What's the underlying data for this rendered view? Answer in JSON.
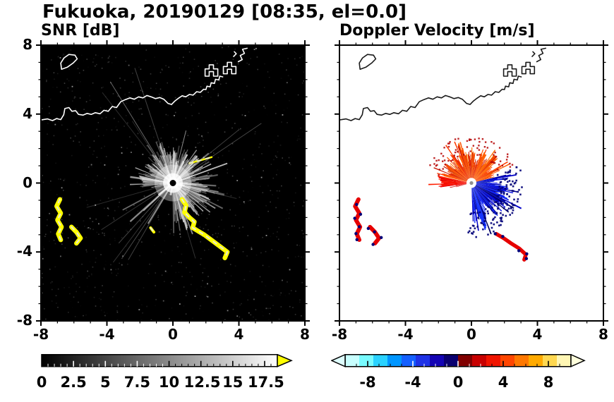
{
  "chart_data": {
    "type": "radar_ppi",
    "title": "Fukuoka, 20190129 [08:35, el=0.0]",
    "site": "Fukuoka",
    "date": "20190129",
    "time": "08:35",
    "elevation": "0.0",
    "axis": {
      "xlim": [
        -8,
        8
      ],
      "ylim": [
        -8,
        8
      ],
      "major_ticks": [
        -8,
        -4,
        0,
        4,
        8
      ],
      "minor_tick_step": 1
    },
    "radar_center": [
      0,
      0
    ],
    "panels": {
      "snr": {
        "title": "SNR [dB]",
        "background": "#000000",
        "coast_color": "#ffffff",
        "colorbar": {
          "min": 0,
          "max": 17.5,
          "axis_max": 18.5,
          "labels": [
            "0",
            "2.5",
            "5",
            "7.5",
            "10",
            "12.5",
            "15",
            "17.5"
          ],
          "style": "grayscale-black-to-white",
          "over_arrow_color": "#ffff00"
        },
        "spokes": {
          "count": 48,
          "min_r": 0.7,
          "max_r": 4.2,
          "long_count": 14
        },
        "clutter_chain_ids": [
          0,
          1,
          2,
          3,
          4
        ],
        "clutter_color": "#ffff00"
      },
      "velocity": {
        "title": "Doppler Velocity [m/s]",
        "background": "#ffffff",
        "coast_color": "#1a1a1a",
        "colorbar": {
          "min": -10,
          "max": 10,
          "labels": [
            "-8",
            "-4",
            "0",
            "4",
            "8"
          ],
          "under_arrow_color": "#dfffff",
          "over_arrow_color": "#ffffdc",
          "colors": [
            "#c8ffff",
            "#78fbff",
            "#2ad2ff",
            "#0096ff",
            "#1460ff",
            "#1e32e6",
            "#1404b4",
            "#0a0070",
            "#800000",
            "#c80000",
            "#f01400",
            "#ff4600",
            "#ff7800",
            "#ffaa00",
            "#ffd850",
            "#fff6b4"
          ]
        },
        "sectors": [
          {
            "name": "north-fan",
            "az_start": 14,
            "az_end": 166,
            "r_inner": 0.3,
            "r_mean": 1.6,
            "r_jitter": 0.75,
            "colors": [
              "#ff5000",
              "#ff3c00",
              "#e62800",
              "#ff7300",
              "#c81400",
              "#ff5a00"
            ]
          },
          {
            "name": "west-wedge",
            "az_start": 168,
            "az_end": 186,
            "r_inner": 0.25,
            "r_mean": 1.9,
            "r_jitter": 0.35,
            "colors": [
              "#f00000",
              "#e60000",
              "#ff1e00"
            ]
          },
          {
            "name": "southwest-spike",
            "az_start": 188,
            "az_end": 198,
            "r_inner": 0.3,
            "r_mean": 1.0,
            "r_jitter": 0.7,
            "sparse": true,
            "colors": [
              "#e60000",
              "#c80000"
            ]
          },
          {
            "name": "southeast-fan",
            "az_start": 272,
            "az_end": 372,
            "r_inner": 0.28,
            "r_mean": 1.95,
            "r_jitter": 0.9,
            "colors": [
              "#0a14e6",
              "#0000c8",
              "#1432ff",
              "#000096",
              "#000064",
              "#0a14e6",
              "#1432ff"
            ]
          }
        ],
        "clutter_chain_ids": [
          0,
          1,
          5
        ],
        "clutter_color": "#e60000",
        "speckle_colors": [
          "#000078",
          "#b40000"
        ]
      }
    },
    "clutter_chains": [
      {
        "w": 6.5,
        "pts": [
          [
            -6.85,
            -0.95
          ],
          [
            -7.05,
            -1.35
          ],
          [
            -6.8,
            -1.75
          ],
          [
            -7.0,
            -2.15
          ],
          [
            -6.75,
            -2.55
          ],
          [
            -6.95,
            -2.95
          ],
          [
            -6.8,
            -3.3
          ]
        ]
      },
      {
        "w": 6.5,
        "pts": [
          [
            -6.15,
            -2.55
          ],
          [
            -5.85,
            -2.85
          ],
          [
            -5.6,
            -3.2
          ],
          [
            -5.85,
            -3.5
          ]
        ]
      },
      {
        "w": 6.5,
        "pts": [
          [
            0.55,
            -0.95
          ],
          [
            0.8,
            -1.3
          ],
          [
            0.7,
            -1.7
          ],
          [
            1.0,
            -2.0
          ],
          [
            1.3,
            -2.25
          ],
          [
            1.2,
            -2.6
          ],
          [
            1.55,
            -2.8
          ],
          [
            1.9,
            -3.0
          ],
          [
            2.25,
            -3.25
          ],
          [
            2.6,
            -3.5
          ],
          [
            2.95,
            -3.75
          ],
          [
            3.3,
            -4.0
          ],
          [
            3.15,
            -4.35
          ]
        ]
      },
      {
        "w": 2.5,
        "pts": [
          [
            1.0,
            1.15
          ],
          [
            1.7,
            1.32
          ],
          [
            2.35,
            1.5
          ]
        ]
      },
      {
        "w": 4.0,
        "pts": [
          [
            -1.35,
            -2.6
          ],
          [
            -1.15,
            -2.85
          ]
        ]
      },
      {
        "w": 6.0,
        "pts": [
          [
            1.5,
            -2.95
          ],
          [
            1.95,
            -3.2
          ],
          [
            2.4,
            -3.5
          ],
          [
            2.9,
            -3.8
          ],
          [
            3.3,
            -4.15
          ],
          [
            3.2,
            -4.45
          ]
        ]
      }
    ],
    "map": {
      "coastlines": [
        [
          [
            -8,
            3.66
          ],
          [
            -7.6,
            3.72
          ],
          [
            -7.3,
            3.62
          ],
          [
            -7.05,
            3.74
          ],
          [
            -6.8,
            3.68
          ],
          [
            -6.62,
            3.96
          ],
          [
            -6.55,
            4.32
          ],
          [
            -6.3,
            4.38
          ],
          [
            -6.12,
            4.16
          ],
          [
            -5.9,
            4.2
          ],
          [
            -5.72,
            3.98
          ],
          [
            -5.45,
            3.94
          ],
          [
            -5.2,
            4.04
          ],
          [
            -4.95,
            3.98
          ],
          [
            -4.7,
            4.08
          ],
          [
            -4.42,
            4.02
          ],
          [
            -4.18,
            4.22
          ],
          [
            -3.92,
            4.16
          ],
          [
            -3.68,
            4.44
          ],
          [
            -3.42,
            4.38
          ],
          [
            -3.16,
            4.72
          ],
          [
            -2.88,
            4.84
          ],
          [
            -2.6,
            4.94
          ],
          [
            -2.34,
            4.86
          ],
          [
            -2.08,
            5.0
          ],
          [
            -1.82,
            4.94
          ],
          [
            -1.58,
            5.08
          ],
          [
            -1.32,
            5.0
          ],
          [
            -1.06,
            4.9
          ],
          [
            -0.8,
            4.96
          ],
          [
            -0.55,
            4.86
          ],
          [
            -0.3,
            4.62
          ],
          [
            -0.08,
            4.56
          ],
          [
            0.12,
            4.76
          ],
          [
            0.34,
            4.92
          ],
          [
            0.56,
            5.06
          ],
          [
            0.78,
            5.0
          ],
          [
            1.0,
            5.14
          ],
          [
            1.22,
            5.1
          ],
          [
            1.44,
            5.3
          ],
          [
            1.66,
            5.26
          ],
          [
            1.86,
            5.44
          ],
          [
            2.0,
            5.42
          ],
          [
            2.06,
            5.62
          ],
          [
            2.26,
            5.58
          ],
          [
            2.32,
            5.82
          ],
          [
            2.52,
            5.78
          ],
          [
            2.58,
            6.02
          ],
          [
            2.78,
            5.98
          ],
          [
            2.84,
            6.2
          ],
          [
            3.02,
            6.16
          ]
        ],
        [
          [
            -6.75,
            6.6
          ],
          [
            -6.4,
            6.72
          ],
          [
            -6.05,
            6.96
          ],
          [
            -5.8,
            7.2
          ],
          [
            -5.94,
            7.42
          ],
          [
            -6.3,
            7.46
          ],
          [
            -6.6,
            7.26
          ],
          [
            -6.8,
            6.96
          ],
          [
            -6.75,
            6.6
          ]
        ],
        [
          [
            1.95,
            6.2
          ],
          [
            2.2,
            6.2
          ],
          [
            2.2,
            6.46
          ],
          [
            2.46,
            6.46
          ],
          [
            2.46,
            6.2
          ],
          [
            2.72,
            6.2
          ],
          [
            2.72,
            6.62
          ],
          [
            2.46,
            6.62
          ],
          [
            2.46,
            6.86
          ],
          [
            2.2,
            6.86
          ],
          [
            2.2,
            6.62
          ],
          [
            1.95,
            6.62
          ],
          [
            1.95,
            6.2
          ]
        ],
        [
          [
            3.06,
            6.34
          ],
          [
            3.3,
            6.34
          ],
          [
            3.3,
            6.6
          ],
          [
            3.56,
            6.6
          ],
          [
            3.56,
            6.34
          ],
          [
            3.82,
            6.34
          ],
          [
            3.82,
            6.76
          ],
          [
            3.56,
            6.76
          ],
          [
            3.56,
            7.0
          ],
          [
            3.3,
            7.0
          ],
          [
            3.3,
            6.76
          ],
          [
            3.06,
            6.76
          ],
          [
            3.06,
            6.34
          ]
        ],
        [
          [
            3.96,
            7.04
          ],
          [
            4.2,
            7.16
          ],
          [
            4.08,
            7.4
          ],
          [
            4.34,
            7.52
          ],
          [
            4.22,
            7.76
          ],
          [
            4.5,
            7.82
          ]
        ],
        [
          [
            3.68,
            7.34
          ],
          [
            3.84,
            7.5
          ],
          [
            3.72,
            7.62
          ]
        ]
      ]
    }
  }
}
